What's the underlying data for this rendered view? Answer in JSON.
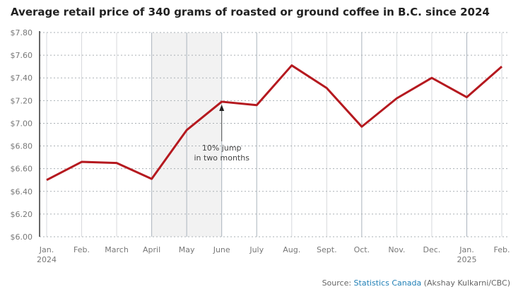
{
  "title": "Average retail price of 340 grams of roasted or ground coffee in B.C. since 2024",
  "source": {
    "prefix": "Source: ",
    "link_text": "Statistics Canada",
    "suffix": " (Akshay Kulkarni/CBC)"
  },
  "chart_data": {
    "type": "line",
    "title": "Average retail price of 340 grams of roasted or ground coffee in B.C. since 2024",
    "categories": [
      "Jan.",
      "Feb.",
      "March",
      "April",
      "May",
      "June",
      "July",
      "Aug.",
      "Sept.",
      "Oct.",
      "Nov.",
      "Dec.",
      "Jan.",
      "Feb."
    ],
    "year_labels": {
      "0": "2024",
      "12": "2025"
    },
    "series": [
      {
        "values": [
          6.5,
          6.66,
          6.65,
          6.51,
          6.94,
          7.19,
          7.16,
          7.51,
          7.31,
          6.97,
          7.22,
          7.4,
          7.23,
          7.5
        ],
        "color": "#b5191f"
      }
    ],
    "ylim": [
      6.0,
      7.8
    ],
    "yticks": [
      "$6.00",
      "$6.20",
      "$6.40",
      "$6.60",
      "$6.80",
      "$7.00",
      "$7.20",
      "$7.40",
      "$7.60",
      "$7.80"
    ],
    "grid": true,
    "highlight_band": {
      "from": "April",
      "to": "June",
      "color": "#f2f2f2"
    },
    "annotation": {
      "lines": [
        "10% jump",
        "in two months"
      ],
      "at": "June"
    }
  }
}
